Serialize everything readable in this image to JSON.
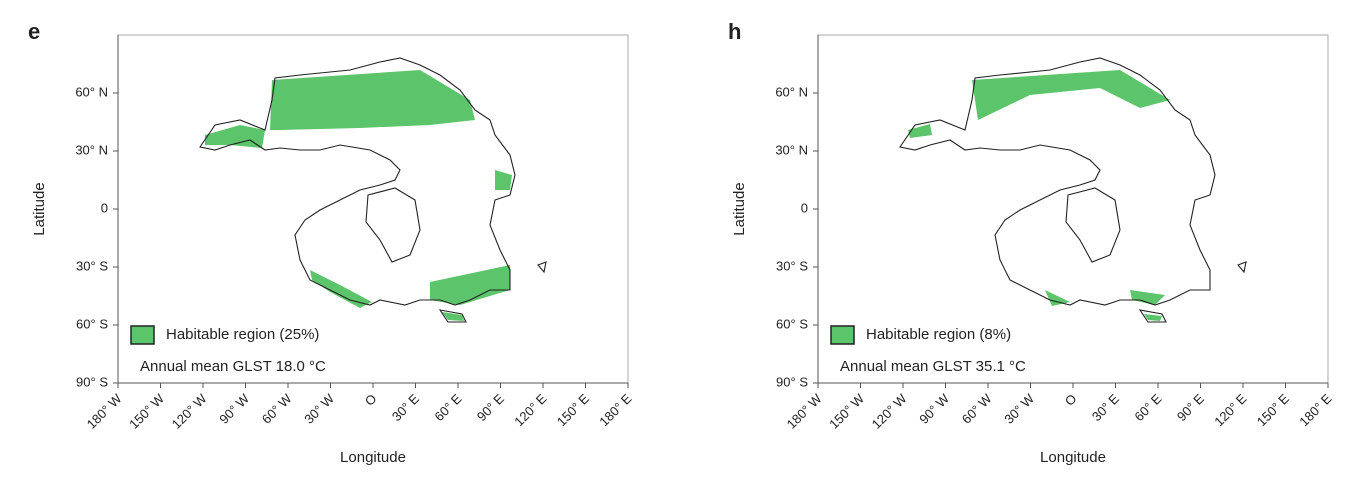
{
  "chart_data": [
    {
      "type": "map",
      "panel_label": "e",
      "xlabel": "Longitude",
      "ylabel": "Latitude",
      "xlim": [
        -180,
        180
      ],
      "ylim": [
        -90,
        90
      ],
      "xticks": [
        {
          "value": -180,
          "label": "180° W"
        },
        {
          "value": -150,
          "label": "150° W"
        },
        {
          "value": -120,
          "label": "120° W"
        },
        {
          "value": -90,
          "label": "90° W"
        },
        {
          "value": -60,
          "label": "60° W"
        },
        {
          "value": -30,
          "label": "30° W"
        },
        {
          "value": 0,
          "label": "O"
        },
        {
          "value": 30,
          "label": "30° E"
        },
        {
          "value": 60,
          "label": "60° E"
        },
        {
          "value": 90,
          "label": "90° E"
        },
        {
          "value": 120,
          "label": "120° E"
        },
        {
          "value": 150,
          "label": "150° E"
        },
        {
          "value": 180,
          "label": "180° E"
        }
      ],
      "yticks": [
        {
          "value": -90,
          "label": "90° S"
        },
        {
          "value": -60,
          "label": "60° S"
        },
        {
          "value": -30,
          "label": "30° S"
        },
        0,
        {
          "value": 30,
          "label": "30° N"
        },
        {
          "value": 60,
          "label": "60° N"
        }
      ],
      "legend": "Habitable region (25%)",
      "color": "#5cc46a",
      "annotation": "Annual mean GLST 18.0 °C"
    },
    {
      "type": "map",
      "panel_label": "h",
      "xlabel": "Longitude",
      "ylabel": "Latitude",
      "xlim": [
        -180,
        180
      ],
      "ylim": [
        -90,
        90
      ],
      "xticks": [
        {
          "value": -180,
          "label": "180° W"
        },
        {
          "value": -150,
          "label": "150° W"
        },
        {
          "value": -120,
          "label": "120° W"
        },
        {
          "value": -90,
          "label": "90° W"
        },
        {
          "value": -60,
          "label": "60° W"
        },
        {
          "value": -30,
          "label": "30° W"
        },
        {
          "value": 0,
          "label": "O"
        },
        {
          "value": 30,
          "label": "30° E"
        },
        {
          "value": 60,
          "label": "60° E"
        },
        {
          "value": 90,
          "label": "90° E"
        },
        {
          "value": 120,
          "label": "120° E"
        },
        {
          "value": 150,
          "label": "150° E"
        },
        {
          "value": 180,
          "label": "180° E"
        }
      ],
      "yticks": [
        {
          "value": -90,
          "label": "90° S"
        },
        {
          "value": -60,
          "label": "60° S"
        },
        {
          "value": -30,
          "label": "30° S"
        },
        0,
        {
          "value": 30,
          "label": "30° N"
        },
        {
          "value": 60,
          "label": "60° N"
        }
      ],
      "legend": "Habitable region (8%)",
      "color": "#5cc46a",
      "annotation": "Annual mean GLST 35.1 °C"
    }
  ]
}
